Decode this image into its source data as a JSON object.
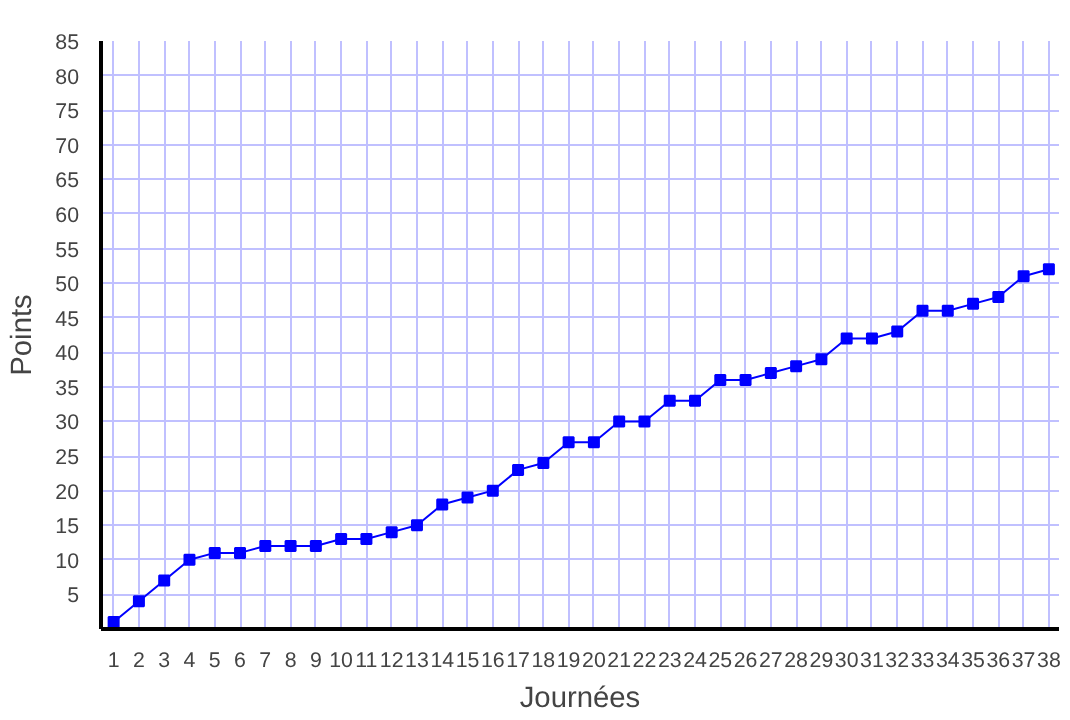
{
  "chart_data": {
    "type": "line",
    "xlabel": "Journées",
    "ylabel": "Points",
    "x": [
      1,
      2,
      3,
      4,
      5,
      6,
      7,
      8,
      9,
      10,
      11,
      12,
      13,
      14,
      15,
      16,
      17,
      18,
      19,
      20,
      21,
      22,
      23,
      24,
      25,
      26,
      27,
      28,
      29,
      30,
      31,
      32,
      33,
      34,
      35,
      36,
      37,
      38
    ],
    "series": [
      {
        "color": "#0000ff",
        "values": [
          1,
          4,
          7,
          10,
          11,
          11,
          12,
          12,
          12,
          13,
          13,
          14,
          15,
          18,
          19,
          20,
          23,
          24,
          27,
          27,
          30,
          30,
          33,
          33,
          36,
          36,
          37,
          38,
          39,
          42,
          42,
          43,
          46,
          46,
          47,
          48,
          51,
          52
        ]
      }
    ],
    "xlim": [
      0.5,
      38.4
    ],
    "ylim": [
      0,
      85
    ],
    "xticks": [
      1,
      2,
      3,
      4,
      5,
      6,
      7,
      8,
      9,
      10,
      11,
      12,
      13,
      14,
      15,
      16,
      17,
      18,
      19,
      20,
      21,
      22,
      23,
      24,
      25,
      26,
      27,
      28,
      29,
      30,
      31,
      32,
      33,
      34,
      35,
      36,
      37,
      38
    ],
    "yticks": [
      5,
      10,
      15,
      20,
      25,
      30,
      35,
      40,
      45,
      50,
      55,
      60,
      65,
      70,
      75,
      80,
      85
    ],
    "grid": true,
    "marker": "square",
    "line_style": "solid"
  }
}
